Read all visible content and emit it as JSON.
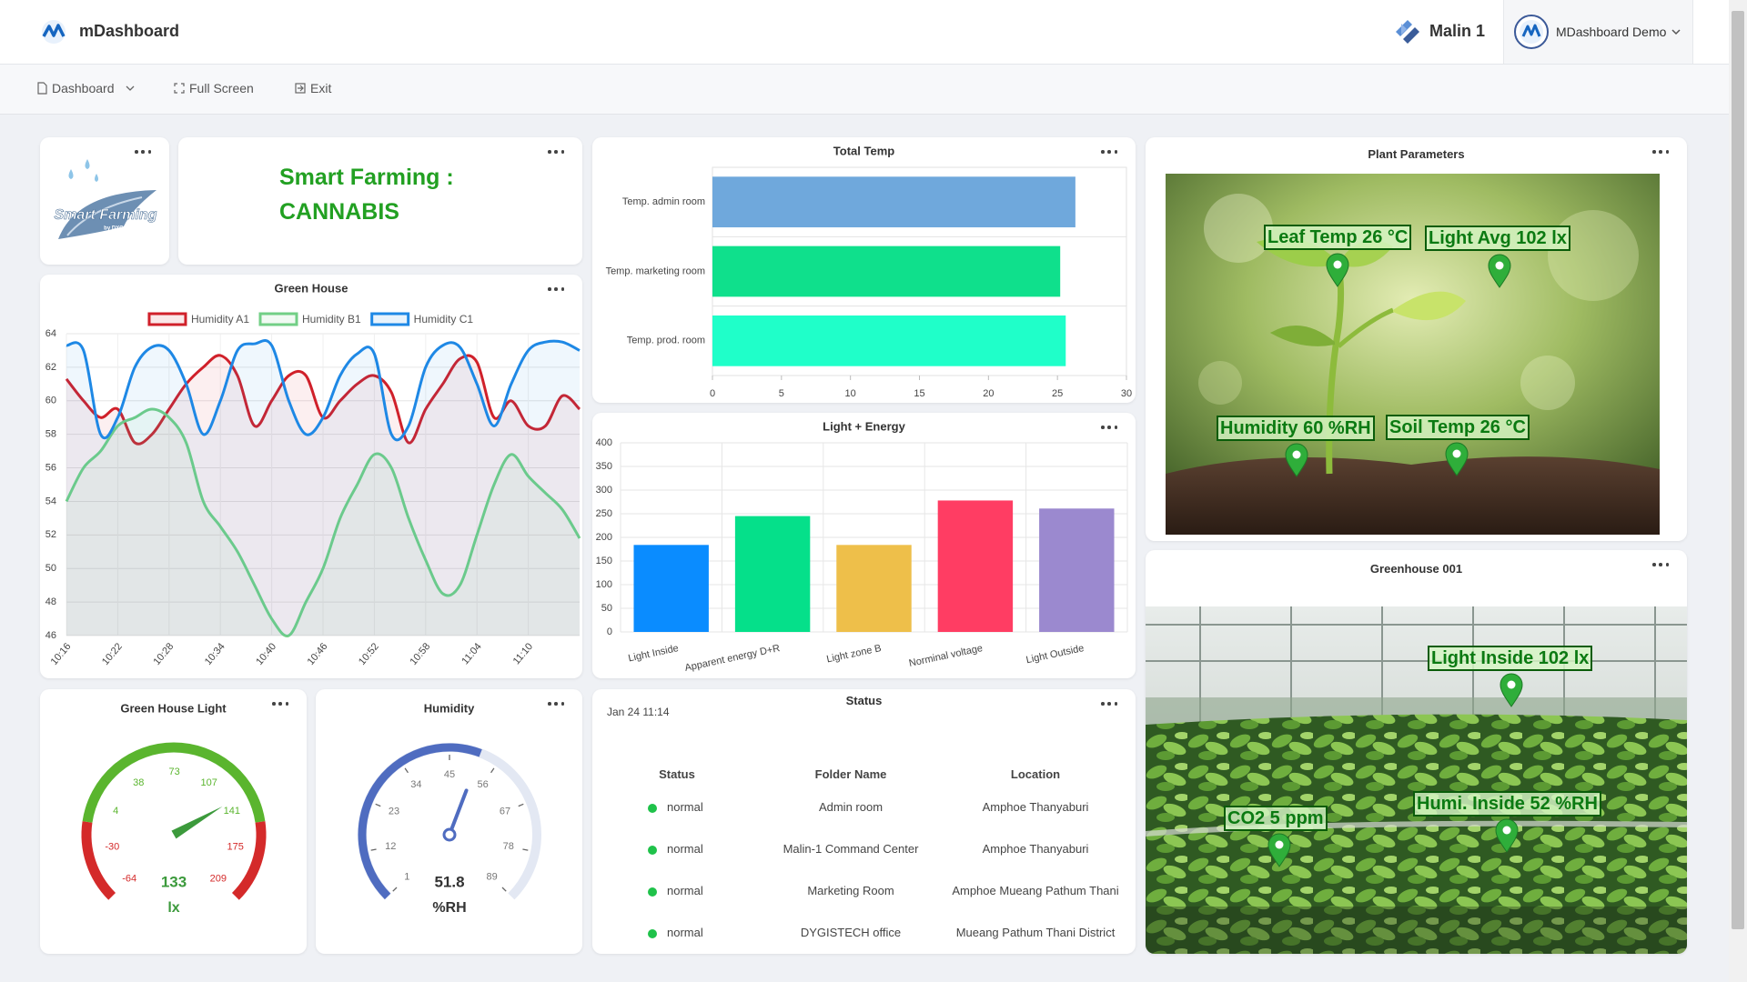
{
  "header": {
    "brand": "mDashboard",
    "workspace": "Malin 1",
    "account": "MDashboard Demo"
  },
  "nav": {
    "items": [
      "Dashboard",
      "Full Screen",
      "Exit"
    ]
  },
  "logo": {
    "title": "Smart Farming",
    "subtitle": "by DYGISTECH"
  },
  "title_card": {
    "lines": [
      "Smart Farming :",
      "CANNABIS"
    ]
  },
  "chart_data": [
    {
      "type": "line",
      "title": "Green House",
      "categories": [
        "10:16",
        null,
        null,
        "10:22",
        null,
        null,
        "10:28",
        null,
        null,
        "10:34",
        null,
        null,
        "10:40",
        null,
        null,
        "10:46",
        null,
        null,
        "10:52",
        null,
        null,
        "10:58",
        null,
        null,
        "11:04",
        null,
        null,
        "11:10",
        null,
        null,
        null
      ],
      "series": [
        {
          "name": "Humidity A1",
          "color": "#d0202a",
          "values": [
            61.3,
            60,
            59,
            59.5,
            57.5,
            58,
            59.5,
            61,
            62,
            62.7,
            61.5,
            58.5,
            60,
            61.5,
            61.5,
            59,
            60,
            61,
            61.5,
            60.5,
            57.5,
            59.5,
            61,
            62.5,
            62.3,
            59,
            60,
            58.5,
            58.5,
            60.3,
            59.5
          ]
        },
        {
          "name": "Humidity B1",
          "color": "#72cf86",
          "values": [
            54,
            56,
            57,
            58.5,
            59,
            59.5,
            59,
            57.5,
            54,
            52.5,
            51,
            49,
            47,
            46,
            48,
            50,
            53,
            55,
            56.8,
            56,
            53,
            50.5,
            48.5,
            49,
            52,
            55,
            56.8,
            55.5,
            54.5,
            53.5,
            51.8
          ]
        },
        {
          "name": "Humidity C1",
          "color": "#1e88e5",
          "values": [
            63.3,
            63,
            58,
            59,
            62,
            63.2,
            63,
            61,
            58,
            60,
            63,
            63.4,
            63.3,
            60,
            58,
            59,
            61.5,
            62.8,
            62.8,
            58,
            58.5,
            62,
            63.3,
            63.2,
            61,
            58.5,
            61,
            63,
            63.5,
            63.5,
            63
          ]
        }
      ],
      "ylim": [
        46,
        64
      ],
      "yticks": [
        46,
        48,
        50,
        52,
        54,
        56,
        58,
        60,
        62,
        64
      ],
      "grid": true,
      "fill": true
    },
    {
      "type": "bar",
      "orientation": "horizontal",
      "title": "Total Temp",
      "categories": [
        "Temp. admin room",
        "Temp. marketing room",
        "Temp. prod. room"
      ],
      "values": [
        26.3,
        25.2,
        25.6
      ],
      "colors": [
        "#6fa8dc",
        "#0fe08c",
        "#1fffc9"
      ],
      "xlim": [
        0,
        30
      ],
      "xticks": [
        0,
        5,
        10,
        15,
        20,
        25,
        30
      ]
    },
    {
      "type": "bar",
      "orientation": "vertical",
      "title": "Light + Energy",
      "categories": [
        "Light Inside",
        "Apparent energy D+R",
        "Light zone B",
        "Norminal voltage",
        "Light Outside"
      ],
      "values": [
        184,
        245,
        184,
        278,
        261
      ],
      "colors": [
        "#0a8cff",
        "#05e08a",
        "#eebf4a",
        "#ff3d63",
        "#9b89cf"
      ],
      "ylim": [
        0,
        400
      ],
      "yticks": [
        0,
        50,
        100,
        150,
        200,
        250,
        300,
        350,
        400
      ],
      "grid": true
    },
    {
      "type": "gauge",
      "title": "Green House Light",
      "value": 133,
      "unit": "lx",
      "ylim": [
        -64,
        209
      ],
      "yticks": [
        -64,
        -30,
        4,
        38,
        73,
        107,
        141,
        175,
        209
      ],
      "bands": [
        {
          "from": -64,
          "to": -10,
          "color": "#d42a2a"
        },
        {
          "from": -10,
          "to": 155,
          "color": "#5ab52e"
        },
        {
          "from": 155,
          "to": 209,
          "color": "#d42a2a"
        }
      ],
      "color": "#3c9a3c",
      "value_color": "#3c9a3c"
    },
    {
      "type": "gauge",
      "title": "Humidity",
      "value": 51.8,
      "unit": "%RH",
      "ylim": [
        1,
        89
      ],
      "yticks": [
        1,
        12,
        23,
        34,
        45,
        56,
        67,
        78,
        89
      ],
      "color": "#4f6cc0",
      "track_color": "#e3e8f3",
      "tick_marks": true,
      "value_color": "#333333"
    }
  ],
  "status": {
    "title": "Status",
    "date": "Jan 24 11:14",
    "columns": [
      "Status",
      "Folder Name",
      "Location"
    ],
    "rows": [
      [
        "normal",
        "Admin room",
        "Amphoe Thanyaburi"
      ],
      [
        "normal",
        "Malin-1 Command Center",
        "Amphoe Thanyaburi"
      ],
      [
        "normal",
        "Marketing Room",
        "Amphoe Mueang Pathum Thani"
      ],
      [
        "normal",
        "DYGISTECH office",
        "Mueang Pathum Thani District"
      ]
    ]
  },
  "plant_parameters": {
    "title": "Plant Parameters",
    "labels": [
      "Leaf Temp 26 °C",
      "Light Avg 102 lx",
      "Humidity 60 %RH",
      "Soil Temp 26 °C"
    ]
  },
  "greenhouse": {
    "title": "Greenhouse 001",
    "labels": [
      "Light Inside 102 lx",
      "Humi. Inside 52 %RH",
      "CO2 5 ppm"
    ]
  }
}
